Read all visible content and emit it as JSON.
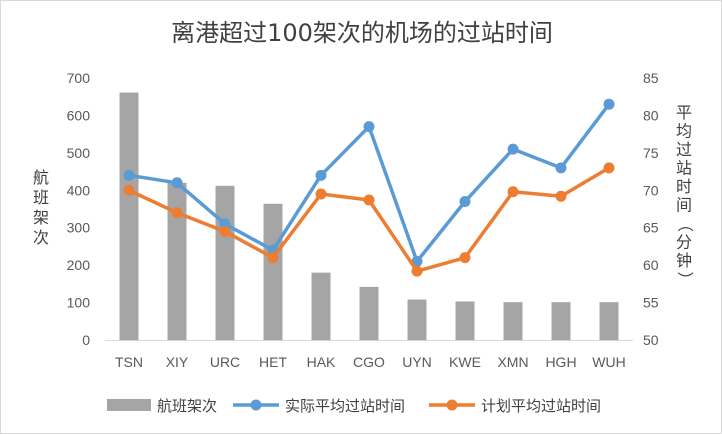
{
  "chart_data": {
    "type": "bar",
    "title": "离港超过100架次的机场的过站时间",
    "categories": [
      "TSN",
      "XIY",
      "URC",
      "HET",
      "HAK",
      "CGO",
      "UYN",
      "KWE",
      "XMN",
      "HGH",
      "WUH"
    ],
    "left_axis": {
      "label": "航班架次",
      "ylim": [
        0,
        700
      ],
      "ticks": [
        0,
        100,
        200,
        300,
        400,
        500,
        600,
        700
      ]
    },
    "right_axis": {
      "label": "平均过站时间（分钟）",
      "ylim": [
        50,
        85
      ],
      "ticks": [
        50,
        55,
        60,
        65,
        70,
        75,
        80,
        85
      ]
    },
    "series": [
      {
        "name": "航班架次",
        "type": "bar",
        "axis": "left",
        "color": "#a5a5a5",
        "values": [
          661,
          420,
          412,
          364,
          180,
          142,
          108,
          103,
          101,
          101,
          101
        ]
      },
      {
        "name": "实际平均过站时间",
        "type": "line",
        "axis": "right",
        "color": "#5b9bd5",
        "values": [
          72,
          71,
          65.5,
          62,
          72,
          78.5,
          60.5,
          68.5,
          75.5,
          73,
          81.5
        ]
      },
      {
        "name": "计划平均过站时间",
        "type": "line",
        "axis": "right",
        "color": "#ed7d31",
        "values": [
          70,
          67,
          64.5,
          61,
          69.5,
          68.7,
          59.2,
          61,
          69.8,
          69.2,
          73
        ]
      }
    ],
    "grid": false,
    "legend_position": "bottom"
  }
}
